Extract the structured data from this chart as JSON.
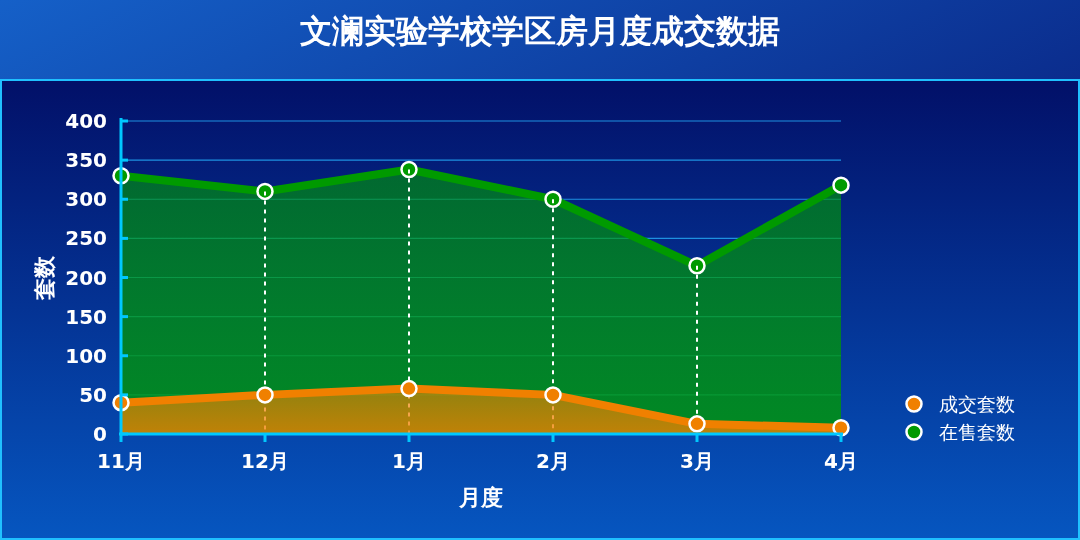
{
  "chart_data": {
    "type": "area",
    "title": "文澜实验学校学区房月度成交数据",
    "xlabel": "月度",
    "ylabel": "套数",
    "categories": [
      "11月",
      "12月",
      "1月",
      "2月",
      "3月",
      "4月"
    ],
    "series": [
      {
        "name": "成交套数",
        "color": "#f08000",
        "values": [
          40,
          50,
          58,
          50,
          13,
          8
        ]
      },
      {
        "name": "在售套数",
        "color": "#009a00",
        "values": [
          330,
          310,
          338,
          300,
          215,
          318
        ]
      }
    ],
    "ylim": [
      0,
      400
    ],
    "yticks": [
      0,
      50,
      100,
      150,
      200,
      250,
      300,
      350,
      400
    ],
    "grid": "xy",
    "legend": "right",
    "marker": "circle"
  }
}
